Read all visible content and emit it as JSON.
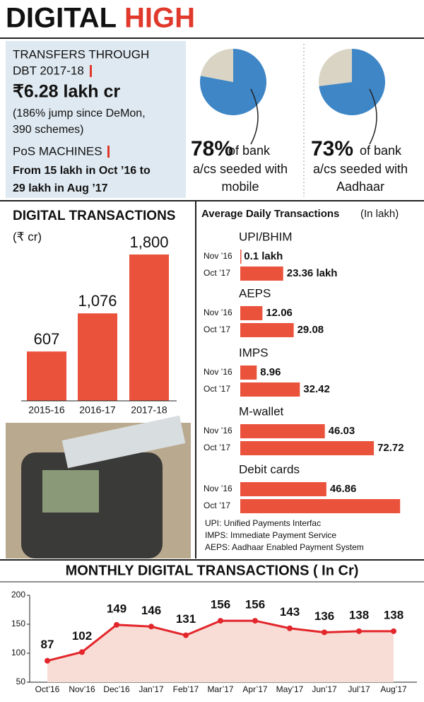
{
  "header": {
    "title": "DIGITAL",
    "title_accent": "HIGH"
  },
  "dbt": {
    "label": [
      "TRANSFERS THROUGH",
      "DBT 2017-18"
    ],
    "amount": "₹6.28 lakh cr",
    "note": [
      "(186% jump since DeMon,",
      "390 schemes)"
    ]
  },
  "pos": {
    "label": "PoS MACHINES",
    "note": [
      "From 15 lakh in Oct ’16 to",
      "29 lakh in Aug ’17"
    ]
  },
  "chart_data": [
    {
      "type": "pie",
      "values": [
        78,
        22
      ],
      "value_labels": [
        "78%",
        null
      ],
      "colors": [
        "#3f86c6",
        "#d9d4c4"
      ],
      "caption": [
        "of bank",
        "a/cs seeded with",
        "mobile"
      ]
    },
    {
      "type": "pie",
      "values": [
        73,
        27
      ],
      "value_labels": [
        "73%",
        null
      ],
      "colors": [
        "#3f86c6",
        "#d9d4c4"
      ],
      "caption": [
        "of bank",
        "a/cs seeded with",
        "Aadhaar"
      ]
    },
    {
      "type": "bar",
      "title": "DIGITAL TRANSACTIONS",
      "subtitle": "(₹ cr)",
      "categories": [
        "2015-16",
        "2016-17",
        "2017-18"
      ],
      "values": [
        607,
        1076,
        1800
      ],
      "value_labels": [
        "607",
        "1,076",
        "1,800"
      ],
      "color": "#ea523b"
    },
    {
      "type": "hbar",
      "title": "Average Daily Transactions",
      "subtitle": "(In lakh)",
      "categories": [
        "UPI/BHIM",
        "AEPS",
        "IMPS",
        "M-wallet",
        "Debit cards"
      ],
      "series": [
        {
          "name": "Nov ’16",
          "color": "#ea523b",
          "values": [
            0.1,
            12.06,
            8.96,
            46.03,
            46.86
          ],
          "value_labels": [
            "0.1 lakh",
            "12.06",
            "8.96",
            "46.03",
            "46.86"
          ]
        },
        {
          "name": "Oct ’17",
          "color": "#ea523b",
          "values": [
            23.36,
            29.08,
            32.42,
            72.72,
            87
          ],
          "value_labels": [
            "23.36 lakh",
            "29.08",
            "32.42",
            "72.72",
            null
          ]
        }
      ],
      "notes": [
        "UPI: Unified Payments Interfac",
        "IMPS: Immediate Payment Service",
        "AEPS: Aadhaar Enabled Payment System"
      ]
    },
    {
      "type": "line",
      "title": "MONTHLY DIGITAL TRANSACTIONS ( In Cr)",
      "categories": [
        "Oct’16",
        "Nov’16",
        "Dec’16",
        "Jan’17",
        "Feb’17",
        "Mar’17",
        "Apr’17",
        "May’17",
        "Jun’17",
        "Jul’17",
        "Aug’17"
      ],
      "values": [
        87,
        102,
        149,
        146,
        131,
        156,
        156,
        143,
        136,
        138,
        138
      ],
      "color": "#e2262b",
      "area_color": "#f8ddd6",
      "ylim": [
        50,
        200
      ],
      "yticks": [
        50,
        100,
        150,
        200
      ],
      "grid": false
    }
  ]
}
